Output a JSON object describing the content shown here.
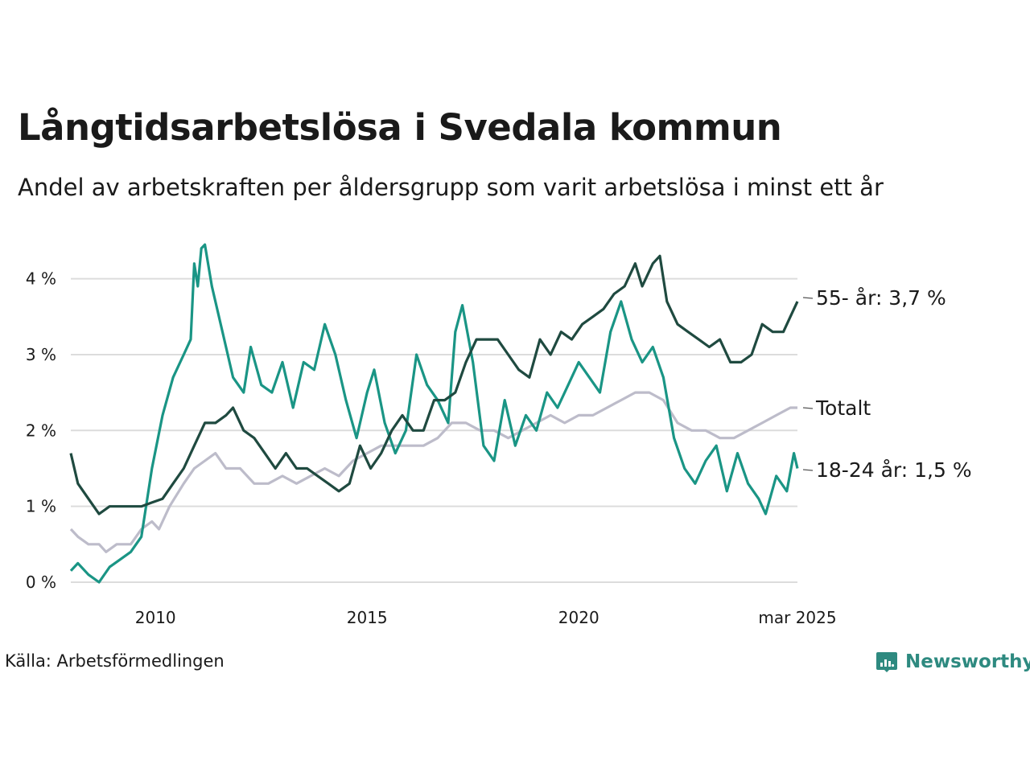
{
  "title": "Långtidsarbetslösa i Svedala kommun",
  "subtitle": "Andel av arbetskraften per åldersgrupp som varit arbetslösa i minst ett år",
  "source": "Källa: Arbetsförmedlingen",
  "logo": {
    "text": "Newsworthy",
    "icon": "newsworthy-bar-chart-icon",
    "color": "#2e8a80"
  },
  "chart_data": {
    "type": "line",
    "title": "Långtidsarbetslösa i Svedala kommun",
    "subtitle": "Andel av arbetskraften per åldersgrupp som varit arbetslösa i minst ett år",
    "x_start": "2008-01",
    "x_end": "2025-03",
    "x_ticks": [
      {
        "value": "2010-01",
        "label": "2010"
      },
      {
        "value": "2015-01",
        "label": "2015"
      },
      {
        "value": "2020-01",
        "label": "2020"
      },
      {
        "value": "2025-03",
        "label": "mar 2025"
      }
    ],
    "y_ticks": [
      {
        "value": 0,
        "label": "0 %"
      },
      {
        "value": 1,
        "label": "1 %"
      },
      {
        "value": 2,
        "label": "2 %"
      },
      {
        "value": 3,
        "label": "3 %"
      },
      {
        "value": 4,
        "label": "4 %"
      }
    ],
    "ylim": [
      0,
      4.6
    ],
    "grid": true,
    "legend": "end-of-line labels",
    "series": [
      {
        "name": "Totalt",
        "end_label": "Totalt",
        "color": "#bdbcca",
        "points": [
          [
            "2008-01",
            0.7
          ],
          [
            "2008-03",
            0.6
          ],
          [
            "2008-06",
            0.5
          ],
          [
            "2008-09",
            0.5
          ],
          [
            "2008-11",
            0.4
          ],
          [
            "2009-02",
            0.5
          ],
          [
            "2009-06",
            0.5
          ],
          [
            "2009-09",
            0.7
          ],
          [
            "2009-12",
            0.8
          ],
          [
            "2010-02",
            0.7
          ],
          [
            "2010-05",
            1.0
          ],
          [
            "2010-09",
            1.3
          ],
          [
            "2010-12",
            1.5
          ],
          [
            "2011-03",
            1.6
          ],
          [
            "2011-06",
            1.7
          ],
          [
            "2011-09",
            1.5
          ],
          [
            "2012-01",
            1.5
          ],
          [
            "2012-05",
            1.3
          ],
          [
            "2012-09",
            1.3
          ],
          [
            "2013-01",
            1.4
          ],
          [
            "2013-05",
            1.3
          ],
          [
            "2013-09",
            1.4
          ],
          [
            "2014-01",
            1.5
          ],
          [
            "2014-05",
            1.4
          ],
          [
            "2014-09",
            1.6
          ],
          [
            "2015-01",
            1.7
          ],
          [
            "2015-05",
            1.8
          ],
          [
            "2015-09",
            1.8
          ],
          [
            "2016-01",
            1.8
          ],
          [
            "2016-05",
            1.8
          ],
          [
            "2016-09",
            1.9
          ],
          [
            "2017-01",
            2.1
          ],
          [
            "2017-05",
            2.1
          ],
          [
            "2017-09",
            2.0
          ],
          [
            "2018-01",
            2.0
          ],
          [
            "2018-05",
            1.9
          ],
          [
            "2018-09",
            2.0
          ],
          [
            "2019-01",
            2.1
          ],
          [
            "2019-05",
            2.2
          ],
          [
            "2019-09",
            2.1
          ],
          [
            "2020-01",
            2.2
          ],
          [
            "2020-05",
            2.2
          ],
          [
            "2020-09",
            2.3
          ],
          [
            "2021-01",
            2.4
          ],
          [
            "2021-05",
            2.5
          ],
          [
            "2021-09",
            2.5
          ],
          [
            "2022-01",
            2.4
          ],
          [
            "2022-05",
            2.1
          ],
          [
            "2022-09",
            2.0
          ],
          [
            "2023-01",
            2.0
          ],
          [
            "2023-05",
            1.9
          ],
          [
            "2023-09",
            1.9
          ],
          [
            "2024-01",
            2.0
          ],
          [
            "2024-05",
            2.1
          ],
          [
            "2024-09",
            2.2
          ],
          [
            "2025-01",
            2.3
          ],
          [
            "2025-03",
            2.3
          ]
        ]
      },
      {
        "name": "18-24 år",
        "end_label": "18-24 år: 1,5 %",
        "color": "#1a9585",
        "points": [
          [
            "2008-01",
            0.15
          ],
          [
            "2008-03",
            0.25
          ],
          [
            "2008-06",
            0.1
          ],
          [
            "2008-09",
            0.0
          ],
          [
            "2008-12",
            0.2
          ],
          [
            "2009-03",
            0.3
          ],
          [
            "2009-06",
            0.4
          ],
          [
            "2009-09",
            0.6
          ],
          [
            "2009-12",
            1.5
          ],
          [
            "2010-03",
            2.2
          ],
          [
            "2010-06",
            2.7
          ],
          [
            "2010-09",
            3.0
          ],
          [
            "2010-11",
            3.2
          ],
          [
            "2010-12",
            4.2
          ],
          [
            "2011-01",
            3.9
          ],
          [
            "2011-02",
            4.4
          ],
          [
            "2011-03",
            4.45
          ],
          [
            "2011-05",
            3.9
          ],
          [
            "2011-08",
            3.3
          ],
          [
            "2011-11",
            2.7
          ],
          [
            "2012-02",
            2.5
          ],
          [
            "2012-04",
            3.1
          ],
          [
            "2012-07",
            2.6
          ],
          [
            "2012-10",
            2.5
          ],
          [
            "2013-01",
            2.9
          ],
          [
            "2013-04",
            2.3
          ],
          [
            "2013-07",
            2.9
          ],
          [
            "2013-10",
            2.8
          ],
          [
            "2014-01",
            3.4
          ],
          [
            "2014-04",
            3.0
          ],
          [
            "2014-07",
            2.4
          ],
          [
            "2014-10",
            1.9
          ],
          [
            "2015-01",
            2.5
          ],
          [
            "2015-03",
            2.8
          ],
          [
            "2015-06",
            2.1
          ],
          [
            "2015-09",
            1.7
          ],
          [
            "2015-12",
            2.0
          ],
          [
            "2016-03",
            3.0
          ],
          [
            "2016-06",
            2.6
          ],
          [
            "2016-09",
            2.4
          ],
          [
            "2016-12",
            2.1
          ],
          [
            "2017-02",
            3.3
          ],
          [
            "2017-04",
            3.65
          ],
          [
            "2017-07",
            2.9
          ],
          [
            "2017-10",
            1.8
          ],
          [
            "2018-01",
            1.6
          ],
          [
            "2018-04",
            2.4
          ],
          [
            "2018-07",
            1.8
          ],
          [
            "2018-10",
            2.2
          ],
          [
            "2019-01",
            2.0
          ],
          [
            "2019-04",
            2.5
          ],
          [
            "2019-07",
            2.3
          ],
          [
            "2019-10",
            2.6
          ],
          [
            "2020-01",
            2.9
          ],
          [
            "2020-04",
            2.7
          ],
          [
            "2020-07",
            2.5
          ],
          [
            "2020-10",
            3.3
          ],
          [
            "2021-01",
            3.7
          ],
          [
            "2021-04",
            3.2
          ],
          [
            "2021-07",
            2.9
          ],
          [
            "2021-10",
            3.1
          ],
          [
            "2022-01",
            2.7
          ],
          [
            "2022-04",
            1.9
          ],
          [
            "2022-07",
            1.5
          ],
          [
            "2022-10",
            1.3
          ],
          [
            "2023-01",
            1.6
          ],
          [
            "2023-04",
            1.8
          ],
          [
            "2023-07",
            1.2
          ],
          [
            "2023-10",
            1.7
          ],
          [
            "2024-01",
            1.3
          ],
          [
            "2024-04",
            1.1
          ],
          [
            "2024-06",
            0.9
          ],
          [
            "2024-09",
            1.4
          ],
          [
            "2024-12",
            1.2
          ],
          [
            "2025-02",
            1.7
          ],
          [
            "2025-03",
            1.5
          ]
        ]
      },
      {
        "name": "55- år",
        "end_label": "55- år: 3,7 %",
        "color": "#1f4a40",
        "points": [
          [
            "2008-01",
            1.7
          ],
          [
            "2008-03",
            1.3
          ],
          [
            "2008-06",
            1.1
          ],
          [
            "2008-09",
            0.9
          ],
          [
            "2008-12",
            1.0
          ],
          [
            "2009-03",
            1.0
          ],
          [
            "2009-06",
            1.0
          ],
          [
            "2009-09",
            1.0
          ],
          [
            "2009-12",
            1.05
          ],
          [
            "2010-03",
            1.1
          ],
          [
            "2010-06",
            1.3
          ],
          [
            "2010-09",
            1.5
          ],
          [
            "2010-12",
            1.8
          ],
          [
            "2011-03",
            2.1
          ],
          [
            "2011-06",
            2.1
          ],
          [
            "2011-09",
            2.2
          ],
          [
            "2011-11",
            2.3
          ],
          [
            "2012-02",
            2.0
          ],
          [
            "2012-05",
            1.9
          ],
          [
            "2012-08",
            1.7
          ],
          [
            "2012-11",
            1.5
          ],
          [
            "2013-02",
            1.7
          ],
          [
            "2013-05",
            1.5
          ],
          [
            "2013-08",
            1.5
          ],
          [
            "2013-11",
            1.4
          ],
          [
            "2014-02",
            1.3
          ],
          [
            "2014-05",
            1.2
          ],
          [
            "2014-08",
            1.3
          ],
          [
            "2014-11",
            1.8
          ],
          [
            "2015-02",
            1.5
          ],
          [
            "2015-05",
            1.7
          ],
          [
            "2015-08",
            2.0
          ],
          [
            "2015-11",
            2.2
          ],
          [
            "2016-02",
            2.0
          ],
          [
            "2016-05",
            2.0
          ],
          [
            "2016-08",
            2.4
          ],
          [
            "2016-11",
            2.4
          ],
          [
            "2017-02",
            2.5
          ],
          [
            "2017-05",
            2.9
          ],
          [
            "2017-08",
            3.2
          ],
          [
            "2017-11",
            3.2
          ],
          [
            "2018-02",
            3.2
          ],
          [
            "2018-05",
            3.0
          ],
          [
            "2018-08",
            2.8
          ],
          [
            "2018-11",
            2.7
          ],
          [
            "2019-02",
            3.2
          ],
          [
            "2019-05",
            3.0
          ],
          [
            "2019-08",
            3.3
          ],
          [
            "2019-11",
            3.2
          ],
          [
            "2020-02",
            3.4
          ],
          [
            "2020-05",
            3.5
          ],
          [
            "2020-08",
            3.6
          ],
          [
            "2020-11",
            3.8
          ],
          [
            "2021-02",
            3.9
          ],
          [
            "2021-05",
            4.2
          ],
          [
            "2021-07",
            3.9
          ],
          [
            "2021-10",
            4.2
          ],
          [
            "2021-12",
            4.3
          ],
          [
            "2022-02",
            3.7
          ],
          [
            "2022-05",
            3.4
          ],
          [
            "2022-08",
            3.3
          ],
          [
            "2022-11",
            3.2
          ],
          [
            "2023-02",
            3.1
          ],
          [
            "2023-05",
            3.2
          ],
          [
            "2023-08",
            2.9
          ],
          [
            "2023-11",
            2.9
          ],
          [
            "2024-02",
            3.0
          ],
          [
            "2024-05",
            3.4
          ],
          [
            "2024-08",
            3.3
          ],
          [
            "2024-11",
            3.3
          ],
          [
            "2025-01",
            3.5
          ],
          [
            "2025-03",
            3.7
          ]
        ]
      }
    ]
  }
}
